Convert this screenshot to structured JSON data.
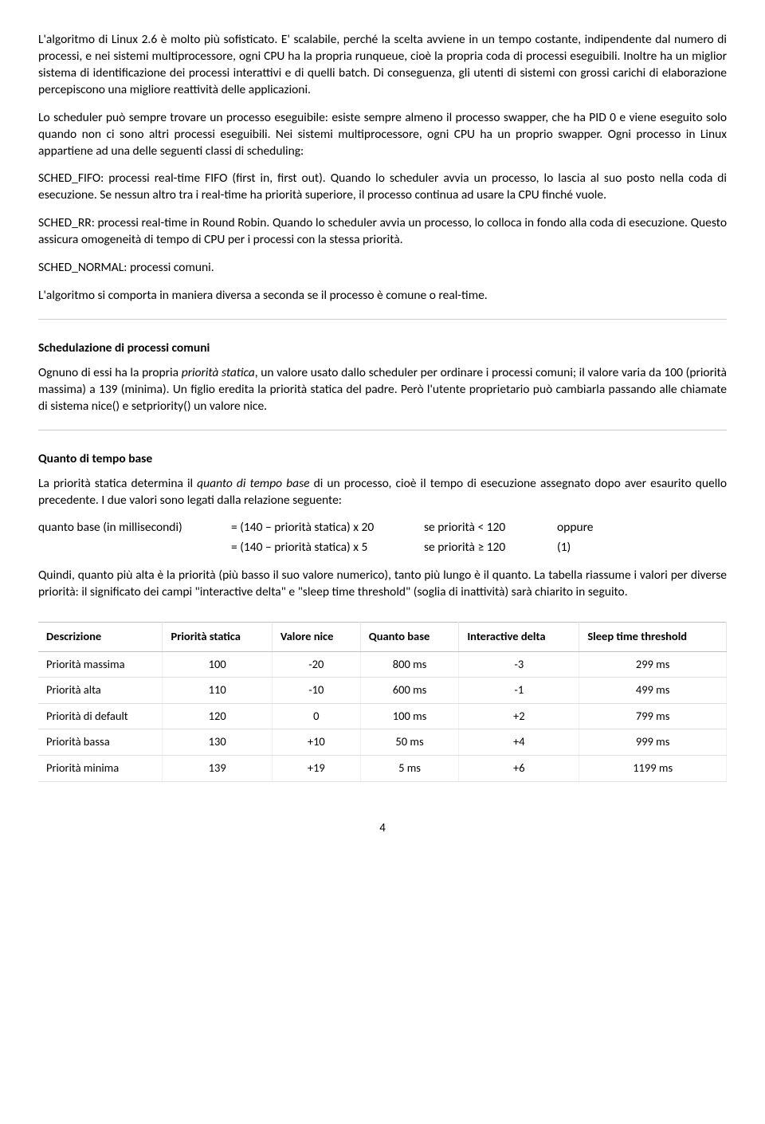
{
  "intro": {
    "p1": "L'algoritmo di Linux 2.6 è molto più sofisticato. E' scalabile, perché la scelta avviene in un tempo costante, indipendente dal numero di processi, e nei sistemi multiprocessore, ogni CPU ha la propria runqueue, cioè la propria coda di processi eseguibili. Inoltre ha un miglior sistema di identificazione dei processi interattivi e di quelli batch. Di conseguenza, gli utenti di sistemi con grossi carichi di elaborazione percepiscono una migliore reattività delle applicazioni.",
    "p2": "Lo scheduler può sempre trovare un processo eseguibile: esiste sempre almeno il processo swapper, che ha PID 0 e viene eseguito solo quando non ci sono altri processi eseguibili. Nei sistemi multiprocessore, ogni CPU ha un proprio swapper. Ogni processo in Linux appartiene ad una delle seguenti classi di scheduling:",
    "p3": "SCHED_FIFO: processi real-time FIFO (first in, first out). Quando lo scheduler avvia un processo, lo lascia al suo posto nella coda di esecuzione. Se nessun altro tra i real-time ha priorità superiore, il processo continua ad usare la CPU finché vuole.",
    "p4": "SCHED_RR: processi real-time in Round Robin. Quando lo scheduler avvia un processo, lo colloca in fondo alla coda di esecuzione. Questo assicura omogeneità di tempo di CPU per i processi con la stessa priorità.",
    "p5": "SCHED_NORMAL: processi comuni.",
    "p6": "L'algoritmo si comporta in maniera diversa a seconda se il processo è comune o real-time."
  },
  "section1": {
    "heading": "Schedulazione di processi comuni",
    "p1_a": "Ognuno di essi ha la propria ",
    "p1_i": "priorità statica",
    "p1_b": ", un valore usato dallo scheduler per ordinare i processi comuni; il valore varia da 100 (priorità massima) a 139 (minima). Un figlio eredita la priorità statica del padre. Però l'utente proprietario può cambiarla passando alle chiamate di sistema  nice() e setpriority() un valore nice."
  },
  "section2": {
    "heading": "Quanto di tempo base",
    "p1_a": "La priorità statica determina il ",
    "p1_i": "quanto di tempo base",
    "p1_b": " di un processo, cioè il tempo di esecuzione assegnato dopo aver esaurito quello precedente. I due valori sono legati dalla relazione seguente:",
    "formula": {
      "row1": {
        "c1": "quanto base (in millisecondi)",
        "c2": "= (140 – priorità statica) x 20",
        "c3": "se priorità < 120",
        "c4": "oppure"
      },
      "row2": {
        "c1": "",
        "c2": "= (140 – priorità statica) x 5",
        "c3": "se priorità ≥ 120",
        "c4": "(1)"
      }
    },
    "p2": "Quindi, quanto più alta è la priorità (più basso il suo valore numerico), tanto più lungo è il quanto. La tabella riassume i valori per diverse priorità: il significato dei campi \"interactive delta\" e \"sleep time threshold\" (soglia di inattività) sarà chiarito in seguito."
  },
  "table": {
    "headers": {
      "c1": "Descrizione",
      "c2": "Priorità statica",
      "c3": "Valore nice",
      "c4": "Quanto base",
      "c5": "Interactive delta",
      "c6": "Sleep time threshold"
    },
    "rows": [
      {
        "c1": "Priorità massima",
        "c2": "100",
        "c3": "-20",
        "c4": "800 ms",
        "c5": "-3",
        "c6": "299 ms"
      },
      {
        "c1": "Priorità alta",
        "c2": "110",
        "c3": "-10",
        "c4": "600 ms",
        "c5": "-1",
        "c6": "499 ms"
      },
      {
        "c1": "Priorità di default",
        "c2": "120",
        "c3": "0",
        "c4": "100 ms",
        "c5": "+2",
        "c6": "799 ms"
      },
      {
        "c1": "Priorità bassa",
        "c2": "130",
        "c3": "+10",
        "c4": "50 ms",
        "c5": "+4",
        "c6": "999 ms"
      },
      {
        "c1": "Priorità minima",
        "c2": "139",
        "c3": "+19",
        "c4": "5 ms",
        "c5": "+6",
        "c6": "1199 ms"
      }
    ]
  },
  "pageNumber": "4"
}
